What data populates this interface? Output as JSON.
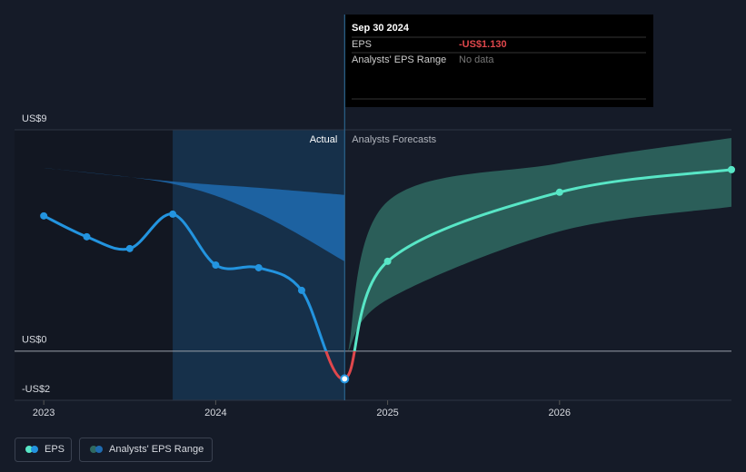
{
  "chart_data": {
    "type": "line",
    "xlim": [
      2022.83,
      2027.0
    ],
    "xticks": [
      2023,
      2024,
      2025,
      2026
    ],
    "ylim": [
      -2,
      9
    ],
    "yticks": [
      {
        "value": 9,
        "label": "US$9"
      },
      {
        "value": 0,
        "label": "US$0"
      },
      {
        "value": -2,
        "label": "-US$2"
      }
    ],
    "grid": true,
    "forecast_start": 2024.75,
    "highlight": [
      2023.75,
      2024.75
    ],
    "label_actual": "Actual",
    "label_forecast": "Analysts Forecasts",
    "series": [
      {
        "name": "EPS",
        "color": "#2394df",
        "forecast_color": "#58e6c6",
        "negative_color": "#e0474c",
        "x": [
          2023.0,
          2023.25,
          2023.5,
          2023.75,
          2024.0,
          2024.25,
          2024.5,
          2024.75,
          2025.0,
          2026.0,
          2027.0
        ],
        "values": [
          5.5,
          4.65,
          4.17,
          5.57,
          3.5,
          3.39,
          2.47,
          -1.13,
          3.65,
          6.46,
          7.38
        ]
      },
      {
        "name": "Analysts' EPS Range",
        "color": "#2f6a62",
        "x": [
          2024.77,
          2025.0,
          2026.0,
          2027.0
        ],
        "low": [
          0,
          2.1,
          4.87,
          5.87
        ],
        "high": [
          0,
          6.09,
          7.64,
          8.67
        ]
      }
    ],
    "past_range": {
      "color": "#1f6bb0",
      "x": [
        2023.0,
        2023.75,
        2024.25,
        2024.75
      ],
      "low": [
        7.45,
        6.8,
        5.6,
        3.65
      ],
      "high": [
        7.45,
        6.9,
        6.64,
        6.35
      ]
    },
    "tooltip": {
      "date": "Sep 30 2024",
      "rows": [
        {
          "label": "EPS",
          "value": "-US$1.130"
        },
        {
          "label": "Analysts' EPS Range",
          "value": "No data"
        }
      ]
    }
  }
}
